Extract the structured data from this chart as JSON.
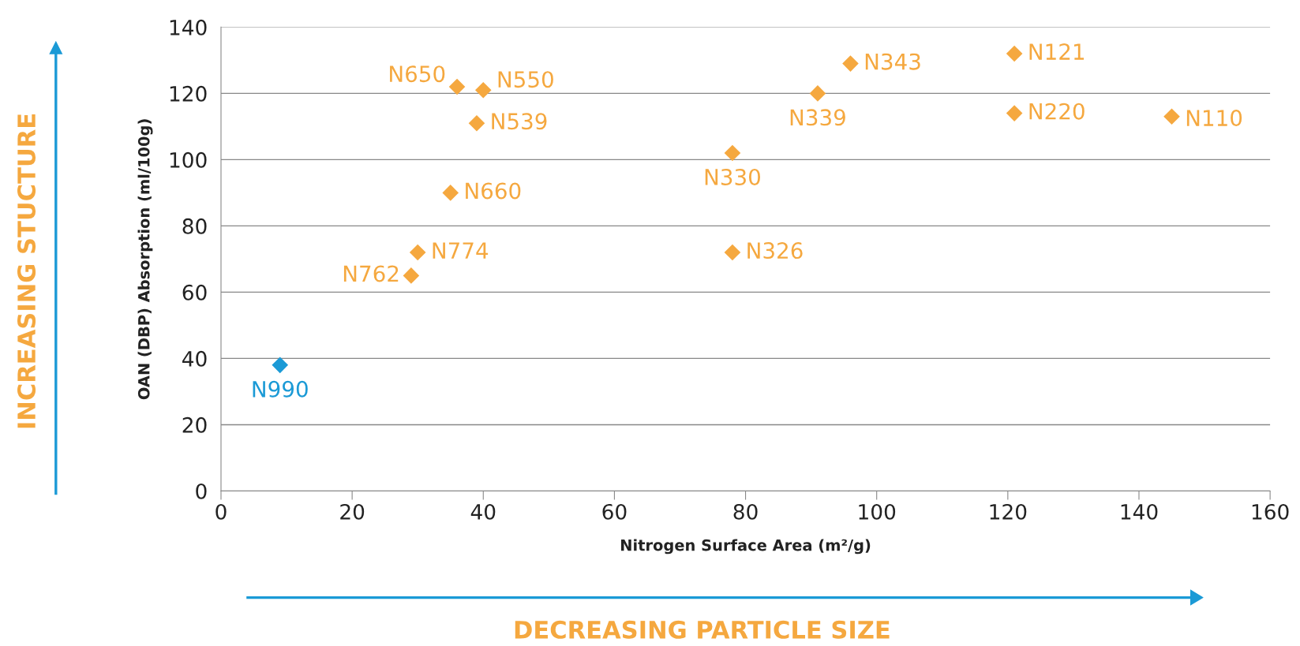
{
  "chart_data": {
    "type": "scatter",
    "xlabel": "Nitrogen Surface Area (m²/g)",
    "ylabel": "OAN (DBP) Absorption (ml/100g)",
    "xlim": [
      0,
      160
    ],
    "xticks": [
      0,
      20,
      40,
      60,
      80,
      100,
      120,
      140,
      160
    ],
    "ylim": [
      0,
      140
    ],
    "yticks": [
      0,
      20,
      40,
      60,
      80,
      100,
      120,
      140
    ],
    "grid": "y",
    "marker": "diamond",
    "series": [
      {
        "color": "#f5a83f",
        "x": [
          29,
          30,
          35,
          36,
          40,
          39,
          78,
          78,
          91,
          96,
          121,
          121,
          145
        ],
        "values": [
          65,
          72,
          90,
          122,
          121,
          111,
          102,
          72,
          120,
          129,
          132,
          114,
          113
        ]
      },
      {
        "color": "#1b9ad6",
        "x": [
          9
        ],
        "values": [
          38
        ]
      }
    ],
    "annotations": [
      {
        "text": "N762",
        "x": 29,
        "y": 65
      },
      {
        "text": "N774",
        "x": 30,
        "y": 72
      },
      {
        "text": "N660",
        "x": 35,
        "y": 90
      },
      {
        "text": "N650",
        "x": 36,
        "y": 122
      },
      {
        "text": "N550",
        "x": 40,
        "y": 121
      },
      {
        "text": "N539",
        "x": 39,
        "y": 111
      },
      {
        "text": "N330",
        "x": 78,
        "y": 102
      },
      {
        "text": "N326",
        "x": 78,
        "y": 72
      },
      {
        "text": "N339",
        "x": 91,
        "y": 120
      },
      {
        "text": "N343",
        "x": 96,
        "y": 129
      },
      {
        "text": "N121",
        "x": 121,
        "y": 132
      },
      {
        "text": "N220",
        "x": 121,
        "y": 114
      },
      {
        "text": "N110",
        "x": 145,
        "y": 113
      },
      {
        "text": "N990",
        "x": 9,
        "y": 38
      },
      "INCREASING STUCTURE",
      "DECREASING PARTICLE SIZE"
    ]
  }
}
